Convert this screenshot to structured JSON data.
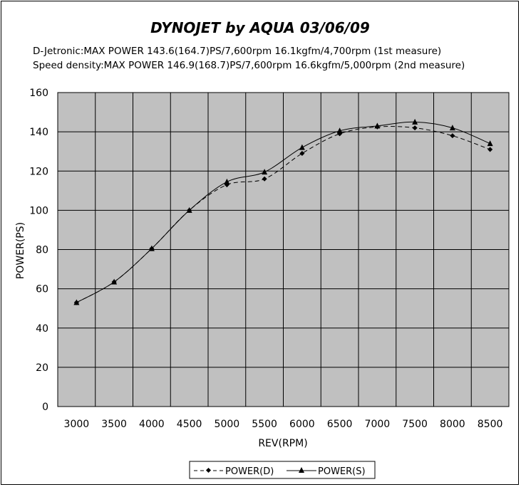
{
  "chart_data": {
    "type": "line",
    "title": "DYNOJET by AQUA 03/06/09",
    "subtitle_lines": [
      "D-Jetronic:MAX POWER 143.6(164.7)PS/7,600rpm 16.1kgfm/4,700rpm (1st measure)",
      "Speed density:MAX POWER 146.9(168.7)PS/7,600rpm 16.6kgfm/5,000rpm (2nd measure)"
    ],
    "xlabel": "REV(RPM)",
    "ylabel": "POWER(PS)",
    "categories": [
      "3000",
      "3500",
      "4000",
      "4500",
      "5000",
      "5500",
      "6000",
      "6500",
      "7000",
      "7500",
      "8000",
      "8500"
    ],
    "ylim": [
      0,
      160
    ],
    "yticks": [
      0,
      20,
      40,
      60,
      80,
      100,
      120,
      140,
      160
    ],
    "grid": true,
    "plot_background": "#c0c0c0",
    "legend_position": "bottom",
    "series": [
      {
        "name": "POWER(D)",
        "marker": "diamond",
        "line_style": "dashed",
        "color": "#000000",
        "values": [
          53,
          63.5,
          80.5,
          100,
          113,
          116,
          129,
          139,
          142.5,
          142,
          138,
          131
        ]
      },
      {
        "name": "POWER(S)",
        "marker": "triangle",
        "line_style": "solid",
        "color": "#000000",
        "values": [
          53,
          63.5,
          80.5,
          100,
          114.5,
          119.5,
          132,
          140.5,
          143,
          145,
          142,
          134
        ]
      }
    ]
  }
}
